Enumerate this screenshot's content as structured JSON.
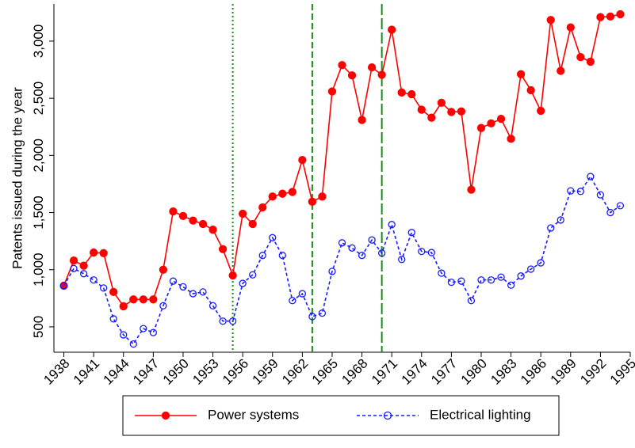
{
  "chart_data": {
    "type": "line",
    "ylabel": "Patents issued during the year",
    "x": [
      1938,
      1939,
      1940,
      1941,
      1942,
      1943,
      1944,
      1945,
      1946,
      1947,
      1948,
      1949,
      1950,
      1951,
      1952,
      1953,
      1954,
      1955,
      1956,
      1957,
      1958,
      1959,
      1960,
      1961,
      1962,
      1963,
      1964,
      1965,
      1966,
      1967,
      1968,
      1969,
      1970,
      1971,
      1972,
      1973,
      1974,
      1975,
      1976,
      1977,
      1978,
      1979,
      1980,
      1981,
      1982,
      1983,
      1984,
      1985,
      1986,
      1987,
      1988,
      1989,
      1990,
      1991,
      1992,
      1993,
      1994
    ],
    "series": [
      {
        "name": "Power systems",
        "color": "#ff0000",
        "marker": "filled",
        "dash": "solid",
        "values": [
          860,
          1080,
          1035,
          1150,
          1145,
          805,
          680,
          740,
          740,
          740,
          1000,
          1510,
          1470,
          1430,
          1400,
          1350,
          1180,
          950,
          1490,
          1400,
          1545,
          1640,
          1665,
          1680,
          1960,
          1595,
          1640,
          2560,
          2790,
          2700,
          2310,
          2770,
          2705,
          3100,
          2550,
          2535,
          2400,
          2330,
          2460,
          2380,
          2385,
          1700,
          2240,
          2280,
          2320,
          2145,
          2710,
          2570,
          2390,
          3185,
          2740,
          3120,
          2860,
          2820,
          3210,
          3215,
          3235
        ]
      },
      {
        "name": "Electrical lighting",
        "color": "#1a1aff",
        "marker": "hollow",
        "dash": "dashed",
        "values": [
          860,
          1010,
          965,
          910,
          840,
          570,
          430,
          350,
          485,
          450,
          685,
          900,
          850,
          790,
          805,
          685,
          550,
          550,
          880,
          955,
          1125,
          1280,
          1125,
          730,
          790,
          590,
          620,
          985,
          1235,
          1190,
          1125,
          1260,
          1145,
          1395,
          1090,
          1325,
          1160,
          1150,
          970,
          890,
          900,
          730,
          910,
          910,
          935,
          865,
          945,
          1005,
          1060,
          1365,
          1435,
          1690,
          1685,
          1815,
          1655,
          1500,
          1560
        ]
      }
    ],
    "vlines": [
      1955,
      1963,
      1970
    ],
    "vline_color": "#1a8c1a",
    "xlim": [
      1937,
      1995
    ],
    "xticks": [
      1938,
      1941,
      1944,
      1947,
      1950,
      1953,
      1956,
      1959,
      1962,
      1965,
      1968,
      1971,
      1974,
      1977,
      1980,
      1983,
      1986,
      1989,
      1992,
      1995
    ],
    "ylim": [
      278,
      3325
    ],
    "yticks": [
      500,
      {
        "value": 1000,
        "label": "1,000"
      },
      {
        "value": 1500,
        "label": "1,500"
      },
      {
        "value": 2000,
        "label": "2,000"
      },
      {
        "value": 2500,
        "label": "2,500"
      },
      {
        "value": 3000,
        "label": "3,000"
      }
    ],
    "grid": false,
    "legend": "bottom"
  }
}
